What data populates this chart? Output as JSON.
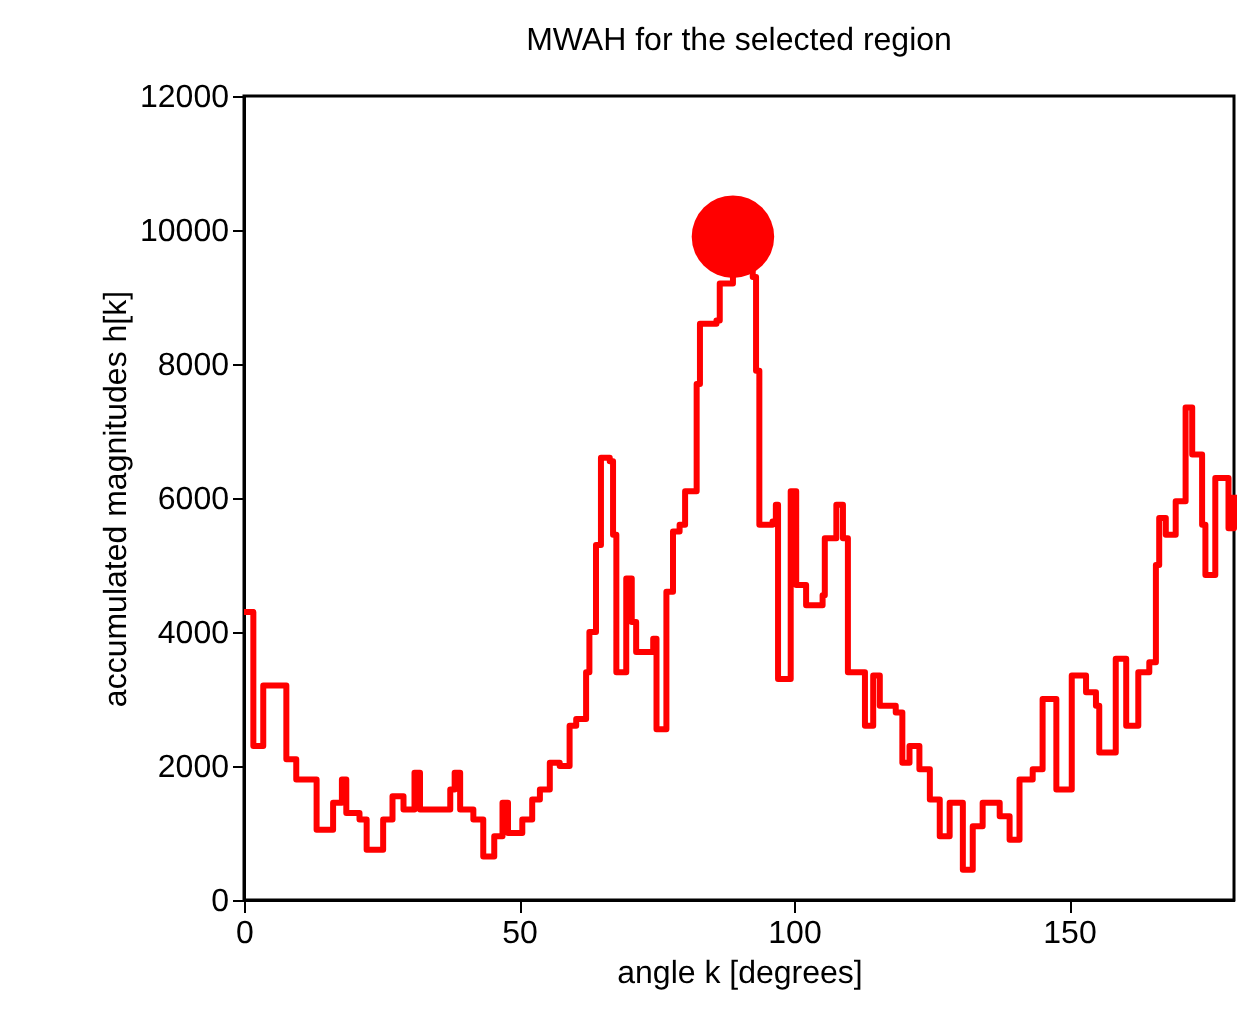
{
  "chart_data": {
    "type": "step",
    "title": "MWAH for the selected region",
    "xlabel": "angle k [degrees]",
    "ylabel": "accumulated magnitudes h[k]",
    "xlim": [
      0,
      180
    ],
    "ylim": [
      0,
      12000
    ],
    "xticks": [
      0,
      50,
      100,
      150
    ],
    "yticks": [
      0,
      2000,
      4000,
      6000,
      8000,
      10000,
      12000
    ],
    "grid": false,
    "series": [
      {
        "color": "#ff0000",
        "marker": "none",
        "x": [
          0,
          1.7,
          3.5,
          7.7,
          9.5,
          13.2,
          15.6,
          16.2,
          17.8,
          18.6,
          21,
          22.3,
          24.1,
          25.3,
          27,
          29,
          31,
          32,
          35.7,
          37.5,
          38.3,
          39.3,
          41.7,
          43.5,
          45,
          45.5,
          47,
          48,
          50.6,
          52.4,
          53.8,
          55.6,
          57.4,
          59.2,
          60.4,
          62.2,
          62.8,
          64,
          64.9,
          66.5,
          67.1,
          67.7,
          69.5,
          70.5,
          71.3,
          74.4,
          75,
          76.8,
          78,
          79.2,
          80.2,
          82.3,
          82.9,
          85.9,
          86.5,
          88.9,
          92.5,
          93.1,
          93.7,
          96.1,
          96.7,
          97.1,
          99.4,
          100.4,
          102.2,
          105.2,
          105.6,
          107.7,
          108.9,
          109.8,
          112.9,
          114.4,
          115.6,
          118.5,
          119.7,
          121,
          122.8,
          124.7,
          126.5,
          128.3,
          130.7,
          132.5,
          134.3,
          137.4,
          139.2,
          141,
          143.4,
          145.2,
          147.7,
          150.5,
          153.1,
          154.9,
          155.5,
          158.5,
          160.4,
          162.6,
          164.6,
          165.8,
          166.4,
          167.6,
          169.4,
          171.2,
          172.4,
          174.2,
          174.8,
          176.6,
          179,
          180
        ],
        "values": [
          4300,
          2300,
          3200,
          2100,
          1800,
          1050,
          1050,
          1450,
          1800,
          1300,
          1200,
          750,
          750,
          1200,
          1550,
          1350,
          1900,
          1350,
          1350,
          1650,
          1900,
          1350,
          1200,
          650,
          650,
          950,
          1450,
          1000,
          1200,
          1500,
          1650,
          2050,
          2000,
          2600,
          2700,
          3400,
          4000,
          5300,
          6600,
          6550,
          5450,
          3400,
          4800,
          4150,
          3700,
          3900,
          2550,
          4600,
          5500,
          5600,
          6100,
          7700,
          8600,
          8650,
          9200,
          9900,
          9300,
          7900,
          5600,
          5650,
          5900,
          3300,
          6100,
          4700,
          4400,
          4550,
          5400,
          5900,
          5400,
          3400,
          2600,
          3350,
          2900,
          2800,
          2050,
          2300,
          1950,
          1500,
          950,
          1450,
          450,
          1100,
          1450,
          1250,
          900,
          1800,
          1950,
          3000,
          1650,
          3350,
          3100,
          2900,
          2200,
          3600,
          2600,
          3400,
          3550,
          5000,
          5700,
          5450,
          5950,
          7350,
          6650,
          5600,
          4850,
          6300,
          5550,
          6050
        ]
      },
      {
        "type": "scatter",
        "color": "#ff0000",
        "marker": "circle",
        "x": [
          88.9
        ],
        "values": [
          9900
        ]
      }
    ]
  }
}
